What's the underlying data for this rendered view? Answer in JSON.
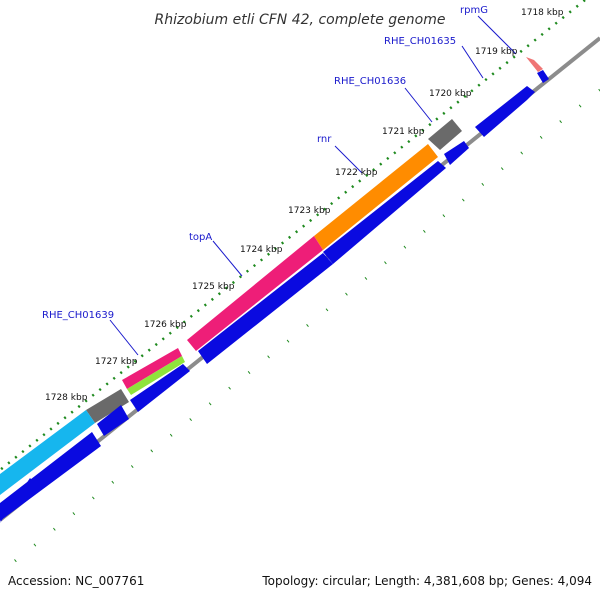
{
  "title": "Rhizobium etli CFN 42, complete genome",
  "accession": "Accession: NC_007761",
  "summary": "Topology: circular; Length: 4,381,608 bp; Genes: 4,094",
  "ticks": [
    "1718 kbp",
    "1719 kbp",
    "1720 kbp",
    "1721 kbp",
    "1722 kbp",
    "1723 kbp",
    "1724 kbp",
    "1725 kbp",
    "1726 kbp",
    "1727 kbp",
    "1728 kbp"
  ],
  "gene_labels": [
    "rpmG",
    "RHE_CH01635",
    "RHE_CH01636",
    "rnr",
    "topA",
    "RHE_CH01639"
  ],
  "colors": {
    "cds": "#0a0ae0",
    "backbone": "#8c8c8c",
    "tick_dots": "#1f8a1f",
    "label": "#1a1acc",
    "orange": "#ff8c00",
    "pink": "#ee1e78",
    "cyan": "#16b6ee",
    "grey": "#6a6a6a",
    "lime": "#8fe43c",
    "salmon": "#ef7575"
  }
}
